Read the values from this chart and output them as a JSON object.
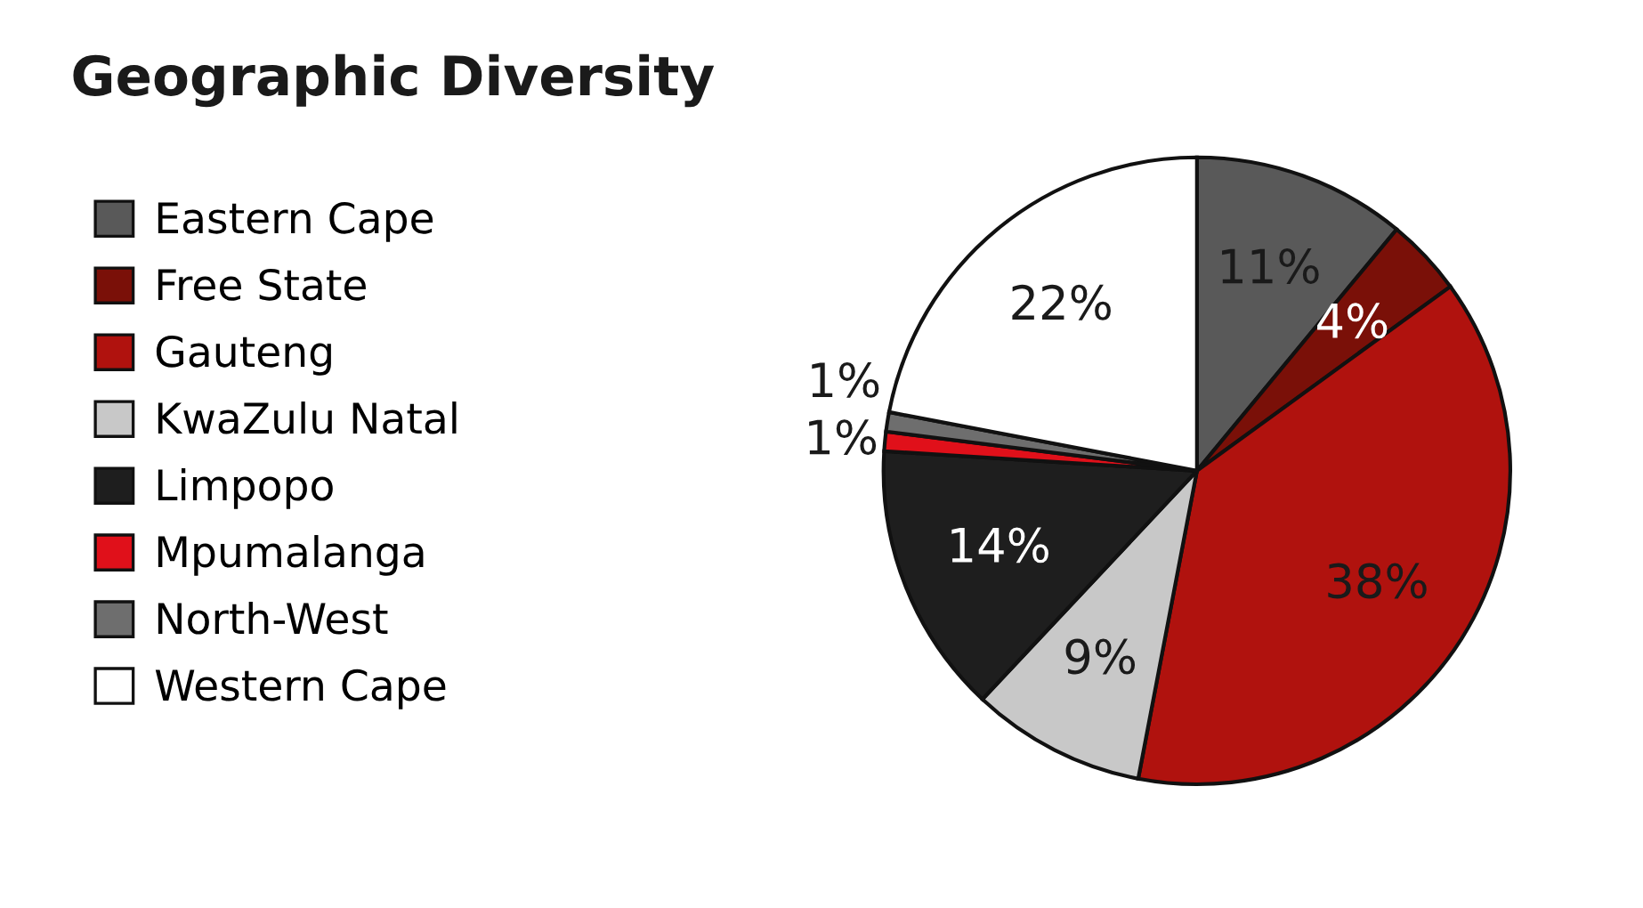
{
  "chart_data": {
    "type": "pie",
    "title": "Geographic Diversity",
    "categories": [
      "Eastern Cape",
      "Free State",
      "Gauteng",
      "KwaZulu Natal",
      "Limpopo",
      "Mpumalanga",
      "North-West",
      "Western Cape"
    ],
    "values": [
      11,
      4,
      38,
      9,
      14,
      1,
      1,
      22
    ],
    "colors": [
      "#595959",
      "#7a1008",
      "#b0120e",
      "#c8c8c8",
      "#1e1e1e",
      "#e0101a",
      "#6e6e6e",
      "#ffffff"
    ],
    "value_labels": [
      "11%",
      "4%",
      "38%",
      "9%",
      "14%",
      "1%",
      "1%",
      "22%"
    ],
    "legend": "left"
  }
}
